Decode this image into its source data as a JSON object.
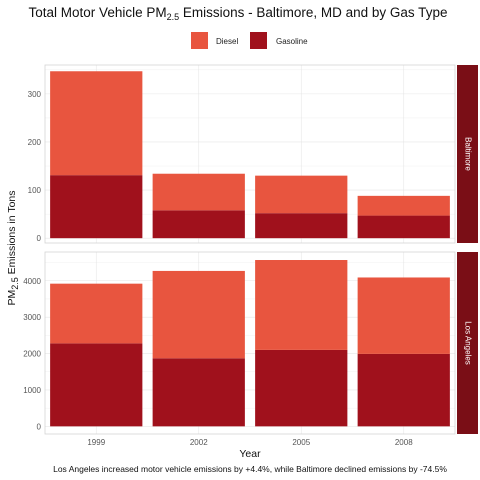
{
  "chart_data": {
    "type": "bar",
    "stacked": true,
    "title_parts": [
      "Total Motor Vehicle PM",
      "2.5",
      " Emissions - Baltimore, MD and by Gas Type"
    ],
    "xlabel": "Year",
    "ylabel_parts": [
      "PM",
      "2.5",
      " Emissions in Tons"
    ],
    "caption": "Los Angeles increased motor vehicle emissions by +4.4%, while Baltimore declined emissions by -74.5%",
    "categories": [
      "1999",
      "2002",
      "2005",
      "2008"
    ],
    "legend": {
      "position": "top",
      "entries": [
        {
          "name": "Diesel",
          "color": "#e8553f"
        },
        {
          "name": "Gasoline",
          "color": "#a0111c"
        }
      ]
    },
    "strip_color": "#7a0e16",
    "grid": true,
    "panels": [
      {
        "name": "Baltimore",
        "ylim": [
          -10,
          360
        ],
        "yticks": [
          0,
          100,
          200,
          300
        ],
        "series": [
          {
            "name": "Gasoline",
            "values": [
              131,
              58,
              52,
              47
            ]
          },
          {
            "name": "Diesel",
            "values": [
              216,
              76,
              78,
              41
            ]
          }
        ]
      },
      {
        "name": "Los Angeles",
        "ylim": [
          -210,
          4790
        ],
        "yticks": [
          0,
          1000,
          2000,
          3000,
          4000
        ],
        "series": [
          {
            "name": "Gasoline",
            "values": [
              2280,
              1870,
              2100,
              1990
            ]
          },
          {
            "name": "Diesel",
            "values": [
              1640,
              2400,
              2470,
              2100
            ]
          }
        ]
      }
    ]
  }
}
